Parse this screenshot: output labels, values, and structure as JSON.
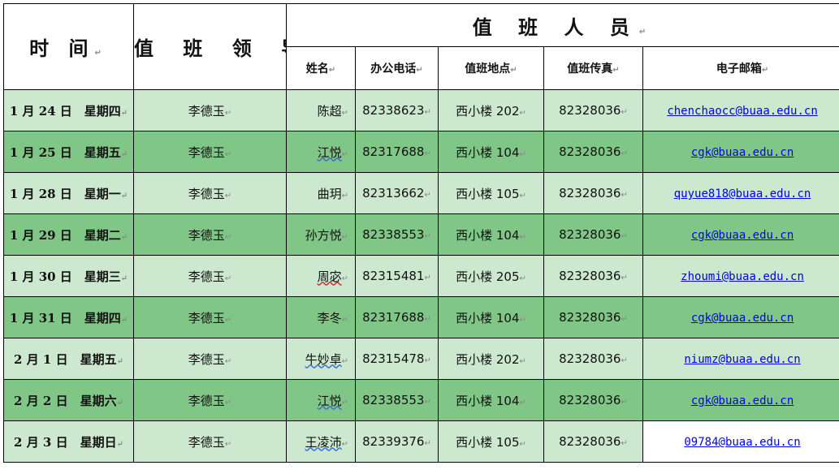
{
  "header": {
    "time": "时 间",
    "leader": "值 班 领 导",
    "staff": "值 班 人 员",
    "columns": [
      "姓名",
      "办公电话",
      "值班地点",
      "值班传真",
      "电子邮箱"
    ]
  },
  "colors": {
    "row_light": "#cce8cf",
    "row_dark": "#80c686",
    "link": "#0000ee"
  },
  "rows": [
    {
      "date": "1 月 24 日　星期四",
      "leader": "李德玉",
      "name": "陈超",
      "phone": "82338623",
      "location": "西小楼 202",
      "fax": "82328036",
      "email": "chenchaocc@buaa.edu.cn"
    },
    {
      "date": "1 月 25 日　星期五",
      "leader": "李德玉",
      "name": "江悦",
      "phone": "82317688",
      "location": "西小楼 104",
      "fax": "82328036",
      "email": "cgk@buaa.edu.cn"
    },
    {
      "date": "1 月 28 日　星期一",
      "leader": "李德玉",
      "name": "曲玥",
      "phone": "82313662",
      "location": "西小楼 105",
      "fax": "82328036",
      "email": "quyue818@buaa.edu.cn"
    },
    {
      "date": "1 月 29 日　星期二",
      "leader": "李德玉",
      "name": "孙方悦",
      "phone": "82338553",
      "location": "西小楼 104",
      "fax": "82328036",
      "email": "cgk@buaa.edu.cn"
    },
    {
      "date": "1 月 30 日　星期三",
      "leader": "李德玉",
      "name": "周宓",
      "phone": "82315481",
      "location": "西小楼 205",
      "fax": "82328036",
      "email": "zhoumi@buaa.edu.cn"
    },
    {
      "date": "1 月 31 日　星期四",
      "leader": "李德玉",
      "name": "李冬",
      "phone": "82317688",
      "location": "西小楼 104",
      "fax": "82328036",
      "email": "cgk@buaa.edu.cn"
    },
    {
      "date": "2 月 1 日　星期五",
      "leader": "李德玉",
      "name": "牛妙卓",
      "phone": "82315478",
      "location": "西小楼 202",
      "fax": "82328036",
      "email": "niumz@buaa.edu.cn"
    },
    {
      "date": "2 月 2 日　星期六",
      "leader": "李德玉",
      "name": "江悦",
      "phone": "82338553",
      "location": "西小楼 104",
      "fax": "82328036",
      "email": "cgk@buaa.edu.cn"
    },
    {
      "date": "2 月 3 日　星期日",
      "leader": "李德玉",
      "name": "王凌沛",
      "phone": "82339376",
      "location": "西小楼 105",
      "fax": "82328036",
      "email": "09784@buaa.edu.cn"
    }
  ]
}
